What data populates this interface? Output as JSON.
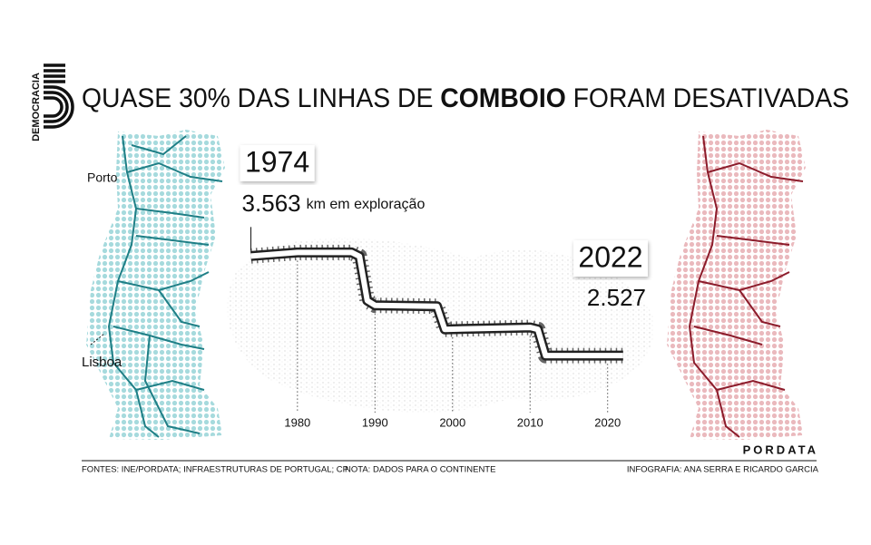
{
  "title": {
    "before": "QUASE 30% DAS LINHAS DE ",
    "emphasis": "COMBOIO",
    "after": " FORAM DESATIVADAS"
  },
  "logo": {
    "text": "DEMOCRACIA",
    "brand": "PORDATA"
  },
  "map_labels": {
    "north": "Porto",
    "south": "Lisboa"
  },
  "chart_data": {
    "type": "line",
    "unit": "km em exploração",
    "x": [
      1974,
      1980,
      1987,
      1988,
      1989,
      1990,
      1998,
      1999,
      2010,
      2011,
      2012,
      2022
    ],
    "values": [
      3563,
      3600,
      3600,
      3560,
      3100,
      3050,
      3040,
      2800,
      2820,
      2800,
      2527,
      2527
    ],
    "value_labels": [
      "3.563",
      null,
      null,
      null,
      null,
      null,
      null,
      null,
      null,
      null,
      null,
      "2.527"
    ],
    "xlim": [
      1973,
      2026
    ],
    "xticks": [
      1980,
      1990,
      2000,
      2010,
      2020
    ],
    "ylim": [
      2000,
      4000
    ],
    "start_color": "#7cc4c9",
    "end_color": "#8c1c2b"
  },
  "footer": {
    "sources": "FONTES: INE/PORDATA; INFRAESTRUTURAS DE PORTUGAL; CP",
    "note": "NOTA: DADOS PARA O CONTINENTE",
    "credits": "INFOGRAFIA: ANA SERRA E RICARDO GARCIA"
  }
}
